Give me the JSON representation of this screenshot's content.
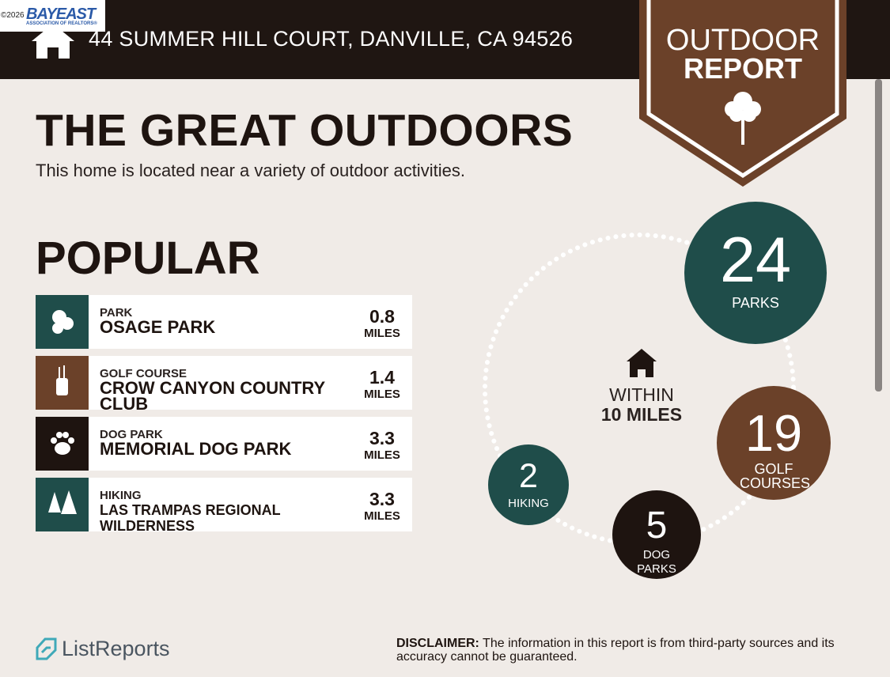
{
  "logo": {
    "copyright": "©2026",
    "brand": "BAYEAST",
    "tagline": "ASSOCIATION OF REALTORS®"
  },
  "header": {
    "address": "44 SUMMER HILL COURT, DANVILLE, CA 94526"
  },
  "badge": {
    "line1": "OUTDOOR",
    "line2": "REPORT"
  },
  "title": "THE GREAT OUTDOORS",
  "subtitle": "This home is located near a variety of outdoor activities.",
  "section": "POPULAR",
  "popular": [
    {
      "category": "PARK",
      "name": "OSAGE PARK",
      "distance": 0.8,
      "unit": "MILES"
    },
    {
      "category": "GOLF COURSE",
      "name": "CROW CANYON COUNTRY CLUB",
      "distance": 1.4,
      "unit": "MILES"
    },
    {
      "category": "DOG PARK",
      "name": "MEMORIAL DOG PARK",
      "distance": 3.3,
      "unit": "MILES"
    },
    {
      "category": "HIKING",
      "name": "LAS TRAMPAS REGIONAL WILDERNESS",
      "distance": 3.3,
      "unit": "MILES"
    }
  ],
  "summary": {
    "within": "WITHIN",
    "radius": "10 MILES",
    "counts": [
      {
        "count": 24,
        "label": "PARKS"
      },
      {
        "count": 19,
        "label": "GOLF COURSES"
      },
      {
        "count": 5,
        "label": "DOG PARKS"
      },
      {
        "count": 2,
        "label": "HIKING"
      }
    ]
  },
  "footer": {
    "brand": "ListReports",
    "disclaimer_label": "DISCLAIMER:",
    "disclaimer": "The information in this report is from third-party sources and its accuracy cannot be guaranteed."
  }
}
